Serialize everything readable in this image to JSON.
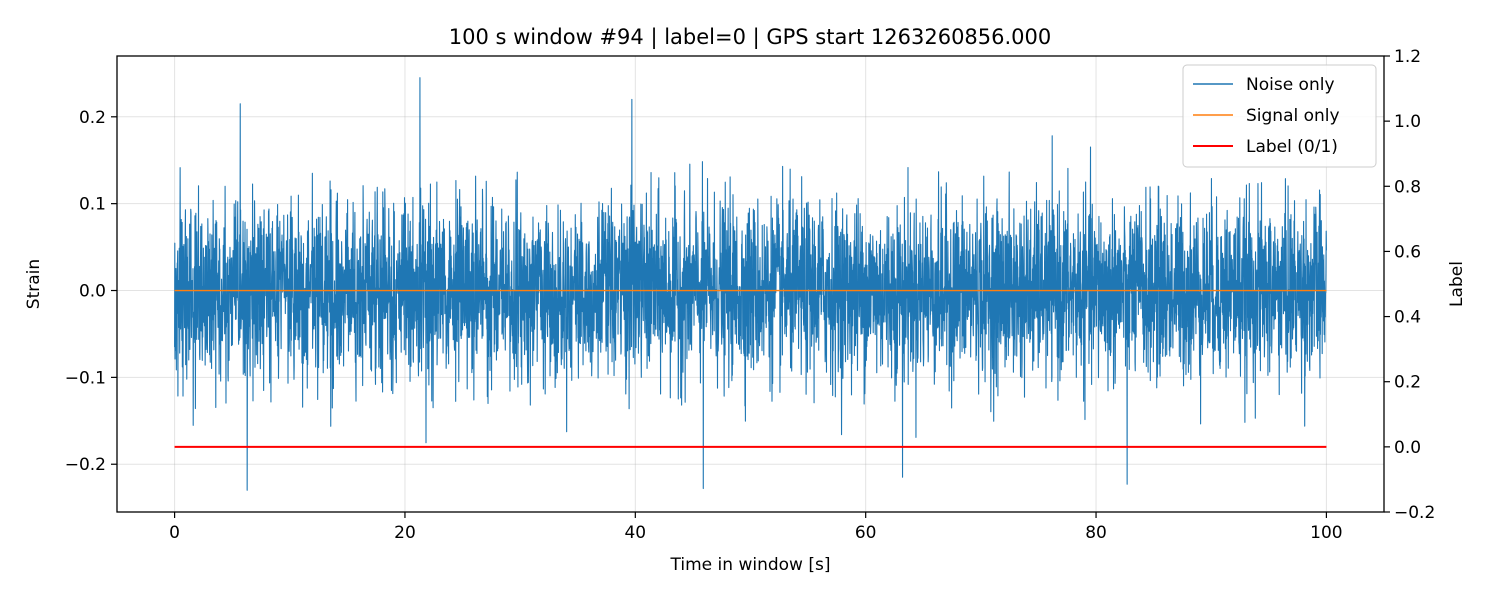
{
  "chart_data": {
    "type": "line",
    "title": "100 s window #94 | label=0 | GPS start 1263260856.000",
    "xlabel": "Time in window [s]",
    "ylabel": "Strain",
    "y2label": "Label",
    "xlim": [
      -5,
      105
    ],
    "ylim": [
      -0.255,
      0.27
    ],
    "y2lim": [
      -0.2,
      1.2
    ],
    "xticks": [
      0,
      20,
      40,
      60,
      80,
      100
    ],
    "yticks": [
      -0.2,
      -0.1,
      0.0,
      0.1,
      0.2
    ],
    "y2ticks": [
      -0.2,
      0.0,
      0.2,
      0.4,
      0.6,
      0.8,
      1.0,
      1.2
    ],
    "xtick_labels": [
      "0",
      "20",
      "40",
      "60",
      "80",
      "100"
    ],
    "ytick_labels": [
      "−0.2",
      "−0.1",
      "0.0",
      "0.1",
      "0.2"
    ],
    "y2tick_labels": [
      "−0.2",
      "0.0",
      "0.2",
      "0.4",
      "0.6",
      "0.8",
      "1.0",
      "1.2"
    ],
    "grid": true,
    "legend_position": "top-right",
    "series": [
      {
        "name": "Noise only",
        "color": "#1f77b4",
        "axis": "left",
        "x_range": [
          0,
          100
        ],
        "typical_amplitude": 0.13,
        "peak_max": 0.245,
        "peak_min": -0.23,
        "notable_spikes": [
          {
            "x": 5.7,
            "y": 0.215
          },
          {
            "x": 21.3,
            "y": 0.245
          },
          {
            "x": 39.7,
            "y": 0.22
          },
          {
            "x": 6.3,
            "y": -0.23
          },
          {
            "x": 45.9,
            "y": -0.228
          },
          {
            "x": 63.2,
            "y": -0.215
          },
          {
            "x": 82.7,
            "y": -0.223
          }
        ]
      },
      {
        "name": "Signal only",
        "color": "#ff7f0e",
        "axis": "left",
        "x": [
          0,
          100
        ],
        "y": [
          0.0,
          0.0
        ]
      },
      {
        "name": "Label (0/1)",
        "color": "#ff0000",
        "axis": "right",
        "x": [
          0,
          100
        ],
        "y": [
          0,
          0
        ]
      }
    ]
  }
}
